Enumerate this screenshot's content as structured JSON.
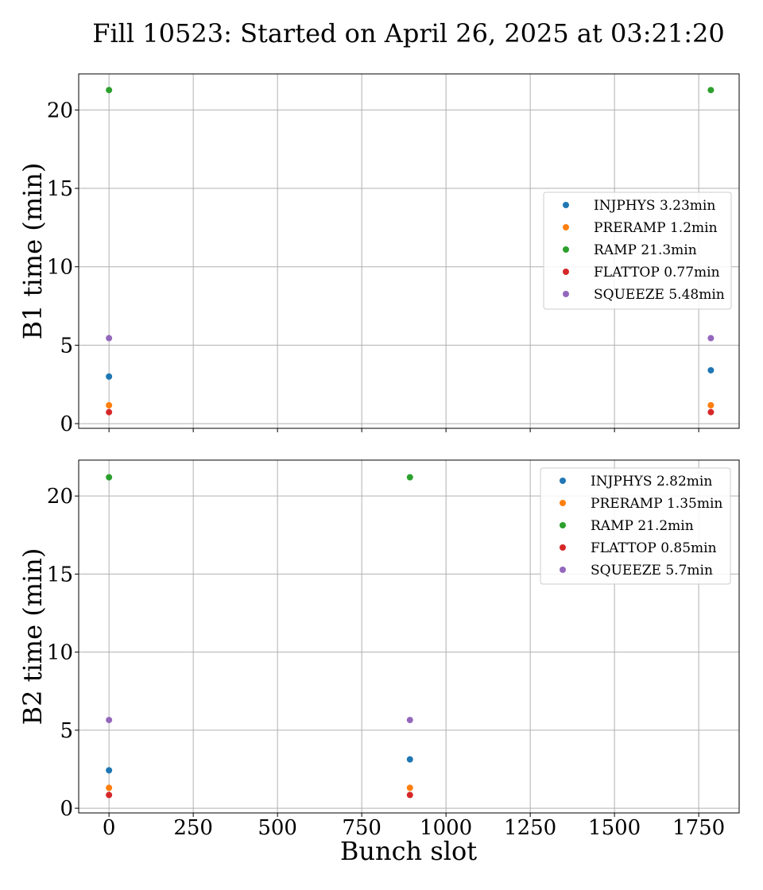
{
  "figure": {
    "title": "Fill 10523: Started on April 26, 2025 at 03:21:20",
    "xlabel": "Bunch slot"
  },
  "colors": {
    "INJPHYS": "#1f77b4",
    "PRERAMP": "#ff7f0e",
    "RAMP": "#2ca02c",
    "FLATTOP": "#d62728",
    "SQUEEZE": "#9467bd"
  },
  "chart_data": [
    {
      "type": "scatter",
      "ylabel": "B1 time (min)",
      "xlim": [
        -90,
        1870
      ],
      "ylim": [
        -0.3,
        22.3
      ],
      "xticks": [
        0,
        250,
        500,
        750,
        1000,
        1250,
        1500,
        1750
      ],
      "yticks": [
        0,
        5,
        10,
        15,
        20
      ],
      "show_xtick_labels": false,
      "grid": true,
      "legend_position": "center-right",
      "series": [
        {
          "name": "INJPHYS",
          "legend": "INJPHYS 3.23min",
          "x": [
            0,
            1786
          ],
          "y": [
            3.0,
            3.4
          ]
        },
        {
          "name": "PRERAMP",
          "legend": "PRERAMP 1.2min",
          "x": [
            0,
            1786
          ],
          "y": [
            1.17,
            1.17
          ]
        },
        {
          "name": "RAMP",
          "legend": "RAMP 21.3min",
          "x": [
            0,
            1786
          ],
          "y": [
            21.27,
            21.27
          ]
        },
        {
          "name": "FLATTOP",
          "legend": "FLATTOP 0.77min",
          "x": [
            0,
            1786
          ],
          "y": [
            0.73,
            0.73
          ]
        },
        {
          "name": "SQUEEZE",
          "legend": "SQUEEZE 5.48min",
          "x": [
            0,
            1786
          ],
          "y": [
            5.45,
            5.45
          ]
        }
      ]
    },
    {
      "type": "scatter",
      "ylabel": "B2 time (min)",
      "xlim": [
        -90,
        1870
      ],
      "ylim": [
        -0.3,
        22.3
      ],
      "xticks": [
        0,
        250,
        500,
        750,
        1000,
        1250,
        1500,
        1750
      ],
      "yticks": [
        0,
        5,
        10,
        15,
        20
      ],
      "show_xtick_labels": true,
      "grid": true,
      "legend_position": "upper-right",
      "series": [
        {
          "name": "INJPHYS",
          "legend": "INJPHYS 2.82min",
          "x": [
            0,
            893
          ],
          "y": [
            2.43,
            3.13
          ]
        },
        {
          "name": "PRERAMP",
          "legend": "PRERAMP 1.35min",
          "x": [
            0,
            893
          ],
          "y": [
            1.31,
            1.31
          ]
        },
        {
          "name": "RAMP",
          "legend": "RAMP 21.2min",
          "x": [
            0,
            893
          ],
          "y": [
            21.2,
            21.2
          ]
        },
        {
          "name": "FLATTOP",
          "legend": "FLATTOP 0.85min",
          "x": [
            0,
            893
          ],
          "y": [
            0.85,
            0.85
          ]
        },
        {
          "name": "SQUEEZE",
          "legend": "SQUEEZE 5.7min",
          "x": [
            0,
            893
          ],
          "y": [
            5.65,
            5.65
          ]
        }
      ]
    }
  ]
}
